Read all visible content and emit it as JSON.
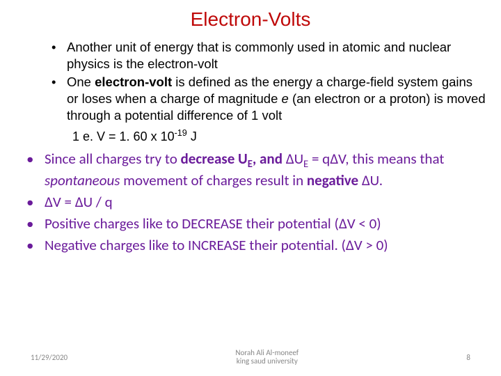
{
  "colors": {
    "title": "#bf0909",
    "body_black": "#000000",
    "purple": "#6a1b9a",
    "footer_gray": "#878787",
    "background": "#ffffff"
  },
  "fonts": {
    "title_size": 28,
    "inner_list_size": 18.5,
    "outer_list_size": 21,
    "footer_size": 11
  },
  "title": "Electron-Volts",
  "inner_bullets": {
    "b1": "Another unit of energy that is commonly used in atomic and nuclear physics is the electron-volt",
    "b2_pre": "One ",
    "b2_term": "electron-volt",
    "b2_post1": " is defined as the energy a charge-field system gains or loses when a charge of magnitude ",
    "b2_e": "e",
    "b2_post2": " (an electron or a proton) is moved through a potential difference of 1 volt"
  },
  "equation": {
    "lhs": "1 e. V = 1. 60 x 10",
    "exp": "-19",
    "unit": " J"
  },
  "outer_bullets": {
    "p1_a": "Since all charges try to ",
    "p1_b": "decrease U",
    "p1_sub": "E",
    "p1_c": ", and ",
    "p1_d": "∆U",
    "p1_d_sub": "E",
    "p1_e": " = q∆V,",
    "p1_f": " this means that ",
    "p1_g": "spontaneous",
    "p1_h": " movement of charges result in ",
    "p1_i": "negative ",
    "p1_j": "∆U.",
    "p2": "∆V = ∆U / q",
    "p3_a": "Positive charges like to DECREASE their potential (",
    "p3_b": "∆",
    "p3_c": "V < 0)",
    "p4_a": "Negative charges like to INCREASE their potential. (",
    "p4_b": "∆",
    "p4_c": "V > 0)"
  },
  "footer": {
    "date": "11/29/2020",
    "author_line1": "Norah Ali Al-moneef",
    "author_line2": "king saud university",
    "page": "8"
  }
}
